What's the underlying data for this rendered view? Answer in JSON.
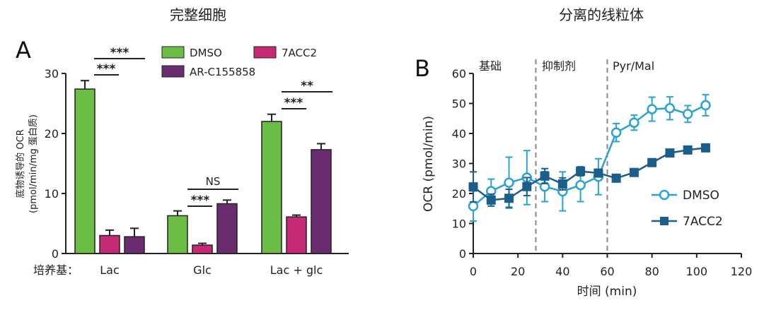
{
  "panel_a": {
    "section_title": "完整细胞",
    "panel_label": "A",
    "media_label": "培养基：",
    "sig": {
      "lac_top": "***",
      "lac_inner": "***",
      "glc_top": "NS",
      "glc_inner": "***",
      "mix_top": "**",
      "mix_inner": "***"
    }
  },
  "panel_b": {
    "section_title": "分离的线粒体",
    "panel_label": "B",
    "phase_labels": [
      "基础",
      "抑制剂",
      "Pyr/Mal"
    ]
  },
  "chart_data": [
    {
      "type": "bar",
      "title": "完整细胞",
      "ylabel": "底物诱导的 OCR\n(pmol/min/mg 蛋白质)",
      "xlabel": "培养基：",
      "ylim": [
        0,
        30
      ],
      "yticks": [
        0,
        10,
        20,
        30
      ],
      "categories": [
        "Lac",
        "Glc",
        "Lac + glc"
      ],
      "legend_position": "top-right",
      "series": [
        {
          "name": "DMSO",
          "color": "#6cbd45",
          "values": [
            27.4,
            6.3,
            22.0
          ],
          "errors": [
            1.4,
            0.8,
            1.2
          ]
        },
        {
          "name": "7ACC2",
          "color": "#c62a77",
          "values": [
            3.0,
            1.4,
            6.1
          ],
          "errors": [
            0.9,
            0.3,
            0.3
          ]
        },
        {
          "name": "AR-C155858",
          "color": "#6b2c6f",
          "values": [
            2.8,
            8.3,
            17.3
          ],
          "errors": [
            1.4,
            0.6,
            1.0
          ]
        }
      ]
    },
    {
      "type": "line",
      "title": "分离的线粒体",
      "xlabel": "时间 (min)",
      "ylabel": "OCR (pmol/min)",
      "xlim": [
        0,
        120
      ],
      "ylim": [
        0,
        60
      ],
      "xticks": [
        0,
        20,
        40,
        60,
        80,
        100,
        120
      ],
      "yticks": [
        0,
        10,
        20,
        30,
        40,
        50,
        60
      ],
      "vlines": [
        28,
        60
      ],
      "legend_position": "right",
      "series": [
        {
          "name": "DMSO",
          "color": "#2aa3d3",
          "marker": "circle-open",
          "x": [
            0,
            8,
            16,
            24,
            32,
            40,
            48,
            56,
            64,
            72,
            80,
            88,
            96,
            104
          ],
          "y": [
            15.8,
            20.8,
            23.6,
            25.3,
            22.3,
            20.7,
            22.8,
            25.6,
            40.3,
            43.6,
            48.1,
            48.4,
            46.5,
            49.4
          ],
          "err": [
            5.0,
            4.0,
            8.5,
            9.0,
            5.0,
            6.5,
            5.5,
            6.0,
            3.0,
            2.5,
            4.0,
            3.8,
            2.8,
            3.5
          ]
        },
        {
          "name": "7ACC2",
          "color": "#1b5e8c",
          "marker": "square-filled",
          "x": [
            0,
            8,
            16,
            24,
            32,
            40,
            48,
            56,
            64,
            72,
            80,
            88,
            96,
            104
          ],
          "y": [
            22.2,
            17.8,
            18.4,
            22.3,
            25.8,
            23.2,
            27.4,
            26.8,
            25.1,
            27.0,
            30.3,
            33.5,
            34.5,
            35.2
          ],
          "err": [
            5.0,
            2.0,
            3.0,
            3.0,
            2.5,
            2.0,
            1.5,
            1.2,
            0,
            0,
            0,
            0,
            0,
            0
          ]
        }
      ]
    }
  ]
}
